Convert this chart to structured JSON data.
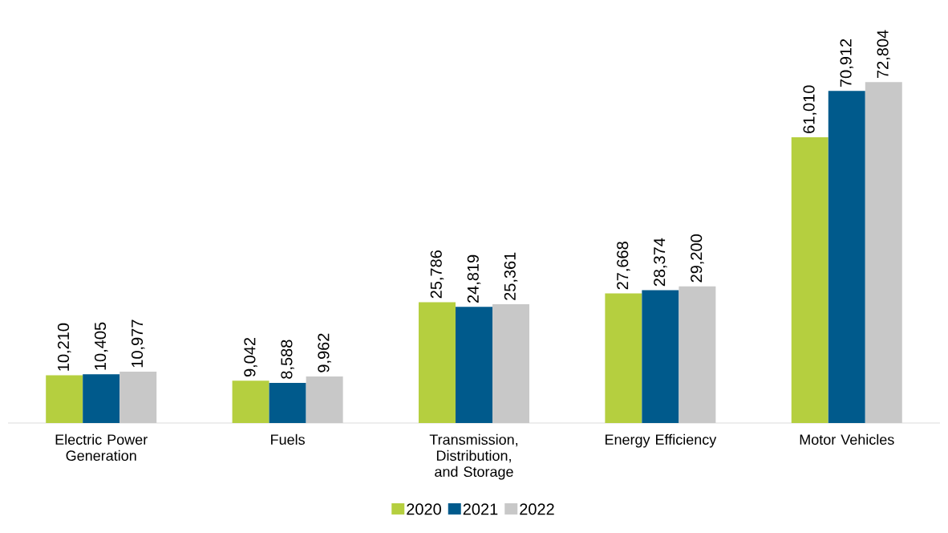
{
  "chart_data": {
    "type": "bar",
    "categories": [
      "Electric Power Generation",
      "Fuels",
      "Transmission, Distribution, and Storage",
      "Energy Efficiency",
      "Motor Vehicles"
    ],
    "series": [
      {
        "name": "2020",
        "color": "#b5cf3f",
        "values": [
          10210,
          9042,
          25786,
          27668,
          61010
        ],
        "value_labels": [
          "10,210",
          "9,042",
          "25,786",
          "27,668",
          "61,010"
        ]
      },
      {
        "name": "2021",
        "color": "#005a8c",
        "values": [
          10405,
          8588,
          24819,
          28374,
          70912
        ],
        "value_labels": [
          "10,405",
          "8,588",
          "24,819",
          "28,374",
          "70,912"
        ]
      },
      {
        "name": "2022",
        "color": "#c8c8c8",
        "values": [
          10977,
          9962,
          25361,
          29200,
          72804
        ],
        "value_labels": [
          "10,977",
          "9,962",
          "25,361",
          "29,200",
          "72,804"
        ]
      }
    ],
    "legend": "bottom",
    "tick_labels": "x"
  }
}
